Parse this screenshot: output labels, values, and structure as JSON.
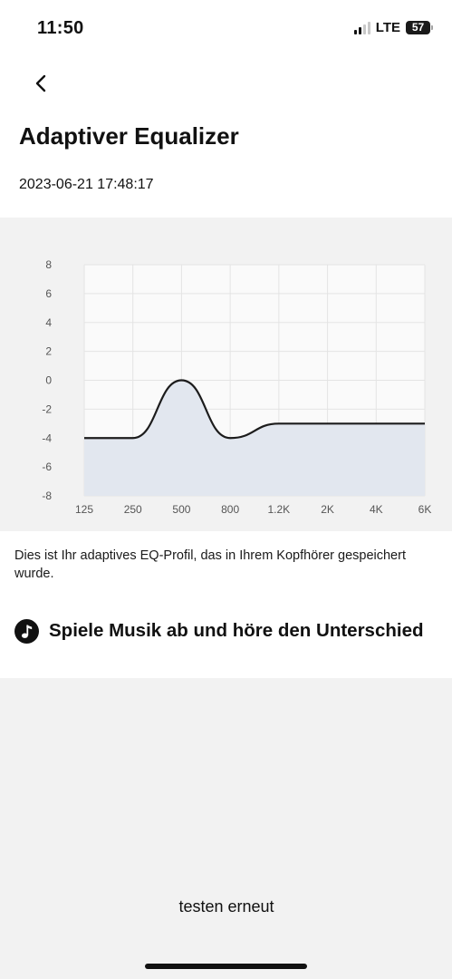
{
  "status_bar": {
    "time": "11:50",
    "network": "LTE",
    "battery": "57"
  },
  "header": {
    "title": "Adaptiver Equalizer",
    "timestamp": "2023-06-21 17:48:17"
  },
  "chart_data": {
    "type": "area",
    "x": [
      "125",
      "250",
      "500",
      "800",
      "1.2K",
      "2K",
      "4K",
      "6K"
    ],
    "y_ticks": [
      8,
      6,
      4,
      2,
      0,
      -2,
      -4,
      -6,
      -8
    ],
    "ylim": [
      -8,
      8
    ],
    "grid": true,
    "series": [
      {
        "x": [
          "125",
          "250",
          "500",
          "800",
          "1.2K",
          "2K",
          "4K",
          "6K"
        ],
        "values": [
          -4,
          -4,
          0,
          -4,
          -3,
          -3,
          -3,
          -3
        ]
      }
    ],
    "line_color": "#1c1c1c",
    "fill_color": "#e2e7ef"
  },
  "main": {
    "description": "Dies ist Ihr adaptives EQ-Profil, das in Ihrem Kopfhörer gespeichert wurde.",
    "play_label": "Spiele Musik ab und höre den Unterschied"
  },
  "footer": {
    "retest_label": "testen erneut"
  }
}
